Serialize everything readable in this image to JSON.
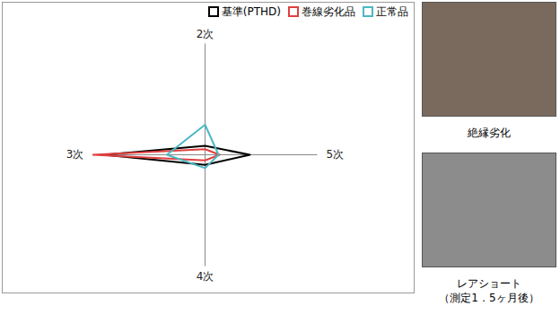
{
  "chart_data": {
    "type": "radar",
    "categories": [
      "2次",
      "5次",
      "4次",
      "3次"
    ],
    "series": [
      {
        "name": "基準(PTHD)",
        "color": "#000000",
        "values": [
          8,
          40,
          9,
          90
        ]
      },
      {
        "name": "巻線劣化品",
        "color": "#e0403f",
        "values": [
          5,
          13,
          5,
          100
        ]
      },
      {
        "name": "正常品",
        "color": "#4bb8c4",
        "values": [
          27,
          12,
          12,
          34
        ]
      }
    ],
    "ylim": [
      0,
      100
    ],
    "tick_labels": false,
    "grid": false,
    "legend": "top-right"
  },
  "photos": [
    {
      "caption": [
        "絶縁劣化"
      ]
    },
    {
      "caption": [
        "レアショート",
        "（測定1．5ヶ月後）"
      ]
    }
  ]
}
